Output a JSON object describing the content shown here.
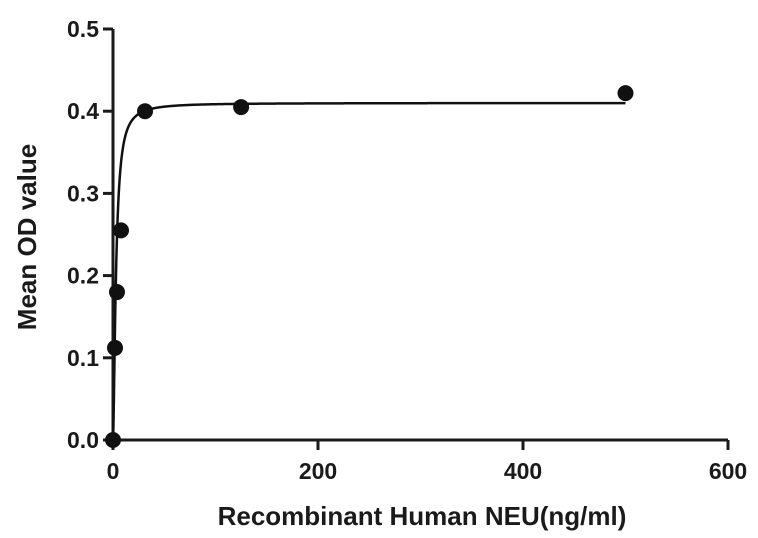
{
  "chart_data": {
    "type": "scatter",
    "title": "",
    "xlabel": "Recombinant Human NEU(ng/ml)",
    "ylabel": "Mean OD value",
    "xlim": [
      0,
      600
    ],
    "ylim": [
      0,
      0.5
    ],
    "xticks": [
      0,
      200,
      400,
      600
    ],
    "xtick_labels": [
      "0",
      "200",
      "400",
      "600"
    ],
    "yticks": [
      0.0,
      0.1,
      0.2,
      0.3,
      0.4,
      0.5
    ],
    "ytick_labels": [
      "0.0",
      "0.1",
      "0.2",
      "0.3",
      "0.4",
      "0.5"
    ],
    "grid": false,
    "series": [
      {
        "marker": "circle",
        "points": [
          {
            "x": 0,
            "y": 0.0
          },
          {
            "x": 1.95,
            "y": 0.112
          },
          {
            "x": 3.9,
            "y": 0.18
          },
          {
            "x": 7.8,
            "y": 0.255
          },
          {
            "x": 31.25,
            "y": 0.4
          },
          {
            "x": 125,
            "y": 0.405
          },
          {
            "x": 500,
            "y": 0.422
          }
        ]
      }
    ],
    "fit_curve": {
      "type": "saturation",
      "vmax": 0.41,
      "k": 3.0,
      "hill": 1.6
    },
    "colors": {
      "axis": "#1a1a1a",
      "marker": "#111111",
      "curve": "#111111"
    }
  }
}
